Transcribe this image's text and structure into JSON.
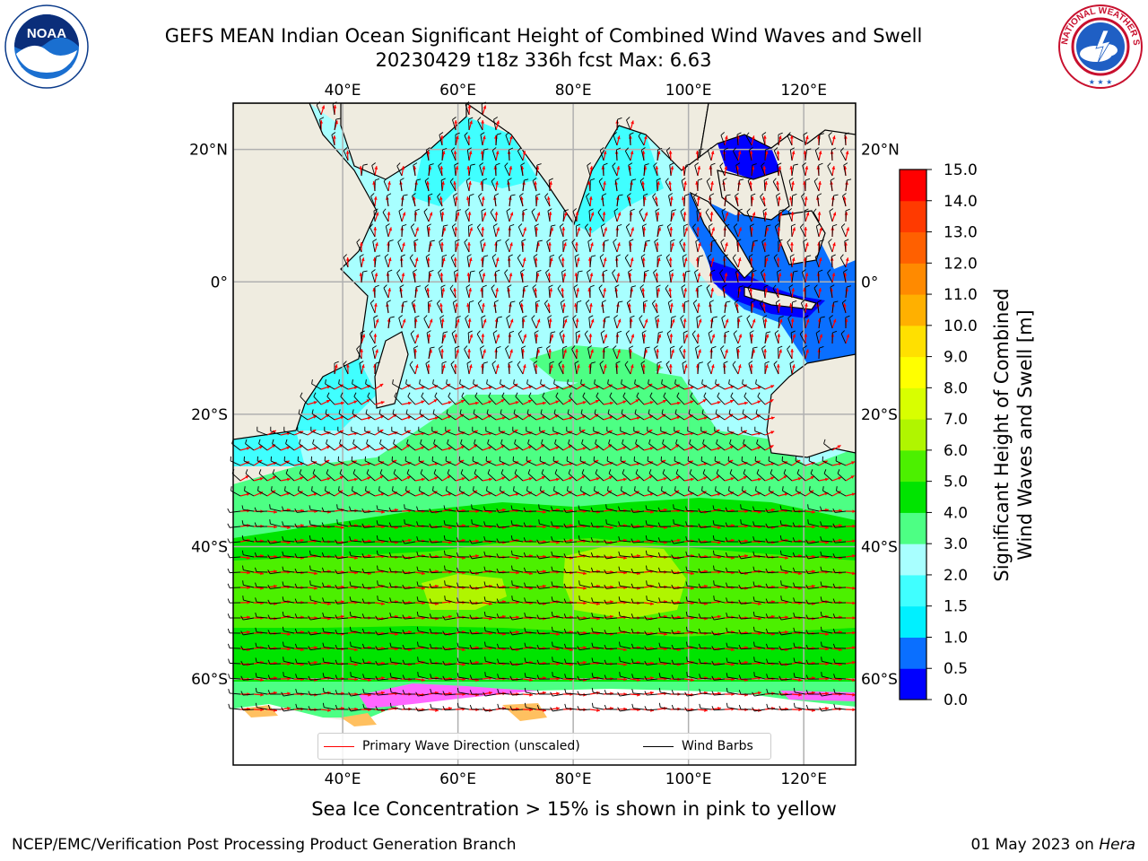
{
  "title_line1": "GEFS MEAN Indian Ocean Significant Height of Combined Wind Waves and Swell",
  "title_line2": "20230429 t18z 336h fcst   Max: 6.63",
  "logos": {
    "left": "NOAA",
    "right": "NATIONAL WEATHER SERVICE"
  },
  "map": {
    "lon_ticks": [
      "40°E",
      "60°E",
      "80°E",
      "100°E",
      "120°E"
    ],
    "lat_ticks": [
      "20°N",
      "0°",
      "20°S",
      "40°S",
      "60°S"
    ],
    "lon_range": [
      21,
      129
    ],
    "lat_range": [
      -73,
      27
    ],
    "land_color": "#efece0",
    "grid": true
  },
  "legend": {
    "wave_label": "Primary Wave Direction (unscaled)",
    "wave_color": "#ff0000",
    "barb_label": "Wind Barbs",
    "barb_color": "#000000"
  },
  "colorbar": {
    "label_line1": "Significant Height of Combined",
    "label_line2": "Wind Waves and Swell [m]",
    "ticks": [
      "0.0",
      "0.5",
      "1.0",
      "1.5",
      "2.0",
      "3.0",
      "4.0",
      "5.0",
      "6.0",
      "7.0",
      "8.0",
      "9.0",
      "10.0",
      "11.0",
      "12.0",
      "13.0",
      "14.0",
      "15.0"
    ],
    "colors": [
      "#0000ff",
      "#0a6fff",
      "#00f0ff",
      "#40ffff",
      "#a8ffff",
      "#4dff84",
      "#00e400",
      "#4cf000",
      "#b0f500",
      "#d8ff00",
      "#ffff00",
      "#ffe000",
      "#ffb000",
      "#ff8a00",
      "#ff6000",
      "#ff3a00",
      "#ff0000"
    ]
  },
  "sea_ice_note": "Sea Ice Concentration > 15% is shown in pink to yellow",
  "footer_left": "NCEP/EMC/Verification Post Processing Product Generation Branch",
  "footer_right_date": "01 May 2023 on",
  "footer_right_host": "Hera"
}
